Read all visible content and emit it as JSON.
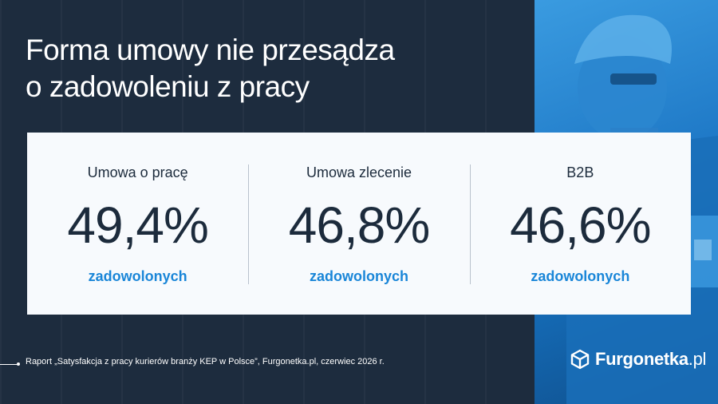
{
  "title": {
    "line1": "Forma umowy nie przesądza",
    "line2": "o zadowoleniu z pracy"
  },
  "stats": [
    {
      "label": "Umowa o pracę",
      "value": "49,4%",
      "sub": "zadowolonych"
    },
    {
      "label": "Umowa zlecenie",
      "value": "46,8%",
      "sub": "zadowolonych"
    },
    {
      "label": "B2B",
      "value": "46,6%",
      "sub": "zadowolonych"
    }
  ],
  "source": "Raport „Satysfakcja z pracy kurierów branży KEP w Polsce”, Furgonetka.pl, czerwiec 2026 r.",
  "logo": {
    "name": "Furgonetka",
    "domain": ".pl",
    "icon": "box-logo-icon"
  },
  "colors": {
    "background": "#1d2c3e",
    "card": "#f7fafd",
    "accent": "#1a86d8",
    "text_dark": "#1c2b3c"
  }
}
